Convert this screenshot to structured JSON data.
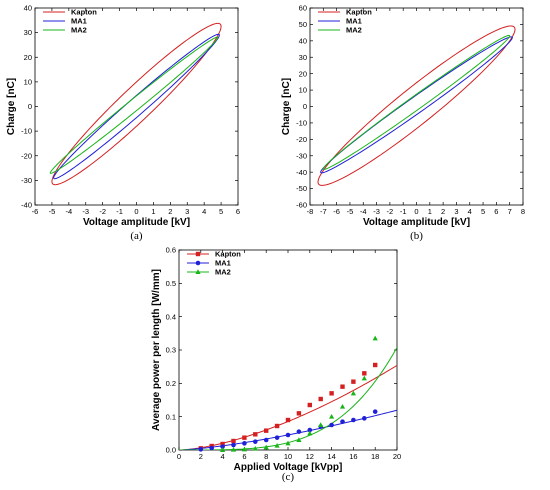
{
  "colors": {
    "Kapton": "#d42020",
    "MA1": "#2020d8",
    "MA2": "#18b418"
  },
  "chart_data": [
    {
      "type": "line",
      "panel_label": "(a)",
      "xlabel": "Voltage amplitude [kV]",
      "ylabel": "Charge [nC]",
      "xlim": [
        -6,
        6
      ],
      "ylim": [
        -40,
        40
      ],
      "xticks": [
        -6,
        -5,
        -4,
        -3,
        -2,
        -1,
        0,
        1,
        2,
        3,
        4,
        5,
        6
      ],
      "yticks": [
        -40,
        -30,
        -20,
        -10,
        0,
        10,
        20,
        30,
        40
      ],
      "grid": false,
      "legend": "top-left",
      "series": [
        {
          "name": "Kapton",
          "shape": "loop",
          "vmax": 5.0,
          "qmax": 32.5,
          "vmin": -5.0,
          "qmin": -30.5,
          "qwidth": 9.0
        },
        {
          "name": "MA1",
          "shape": "loop",
          "vmax": 4.9,
          "qmax": 29.0,
          "vmin": -4.9,
          "qmin": -29.0,
          "qwidth": 4.5
        },
        {
          "name": "MA2",
          "shape": "loop",
          "vmax": 4.8,
          "qmax": 28.0,
          "vmin": -5.1,
          "qmin": -27.0,
          "qwidth": 3.0
        }
      ]
    },
    {
      "type": "line",
      "panel_label": "(b)",
      "xlabel": "Voltage amplitude [kV]",
      "ylabel": "Charge [nC]",
      "xlim": [
        -8,
        8
      ],
      "ylim": [
        -60,
        60
      ],
      "xticks": [
        -8,
        -7,
        -6,
        -5,
        -4,
        -3,
        -2,
        -1,
        0,
        1,
        2,
        3,
        4,
        5,
        6,
        7,
        8
      ],
      "yticks": [
        -60,
        -50,
        -40,
        -30,
        -20,
        -10,
        0,
        10,
        20,
        30,
        40,
        50,
        60
      ],
      "grid": false,
      "legend": "top-left",
      "series": [
        {
          "name": "Kapton",
          "shape": "loop",
          "vmax": 7.4,
          "qmax": 47.0,
          "vmin": -7.4,
          "qmin": -46.0,
          "qwidth": 14.0
        },
        {
          "name": "MA1",
          "shape": "loop",
          "vmax": 7.2,
          "qmax": 42.0,
          "vmin": -7.2,
          "qmin": -40.0,
          "qwidth": 6.0
        },
        {
          "name": "MA2",
          "shape": "loop",
          "vmax": 7.0,
          "qmax": 43.0,
          "vmin": -7.0,
          "qmin": -38.0,
          "qwidth": 5.0
        }
      ]
    },
    {
      "type": "scatter",
      "panel_label": "(c)",
      "xlabel": "Applied Voltage [kVpp]",
      "ylabel": "Average power per length [W/mm]",
      "xlim": [
        0,
        20
      ],
      "ylim": [
        0,
        0.6
      ],
      "xticks": [
        0,
        2,
        4,
        6,
        8,
        10,
        12,
        14,
        16,
        18,
        20
      ],
      "yticks": [
        0,
        0.1,
        0.2,
        0.3,
        0.4,
        0.5,
        0.6
      ],
      "ytick_labels": [
        "0.0",
        "0.1",
        "0.2",
        "0.3",
        "0.4",
        "0.5",
        "0.6"
      ],
      "grid": false,
      "legend": "top-left",
      "series": [
        {
          "name": "Kapton",
          "marker": "square",
          "x": [
            2,
            3,
            4,
            5,
            6,
            7,
            8,
            9,
            10,
            11,
            12,
            13,
            14,
            15,
            16,
            17,
            18
          ],
          "y": [
            0.005,
            0.012,
            0.018,
            0.027,
            0.037,
            0.047,
            0.058,
            0.072,
            0.09,
            0.11,
            0.135,
            0.153,
            0.17,
            0.19,
            0.205,
            0.23,
            0.255
          ],
          "fit": {
            "a": 0.0023,
            "p": 1.57
          }
        },
        {
          "name": "MA1",
          "marker": "circle",
          "x": [
            2,
            3,
            4,
            5,
            6,
            7,
            8,
            9,
            10,
            11,
            12,
            13,
            14,
            15,
            16,
            17,
            18
          ],
          "y": [
            0.002,
            0.006,
            0.01,
            0.015,
            0.02,
            0.025,
            0.03,
            0.037,
            0.045,
            0.055,
            0.06,
            0.07,
            0.075,
            0.085,
            0.09,
            0.095,
            0.115
          ],
          "fit": {
            "a": 0.0018,
            "p": 1.4
          }
        },
        {
          "name": "MA2",
          "marker": "triangle",
          "x": [
            4,
            5,
            6,
            7,
            8,
            9,
            10,
            11,
            12,
            13,
            14,
            15,
            16,
            17,
            18
          ],
          "y": [
            0.0,
            0.001,
            0.002,
            0.004,
            0.008,
            0.013,
            0.02,
            0.03,
            0.05,
            0.075,
            0.1,
            0.13,
            0.17,
            0.215,
            0.335
          ],
          "fit": {
            "a": 3.5e-06,
            "p": 3.8
          }
        }
      ]
    }
  ]
}
